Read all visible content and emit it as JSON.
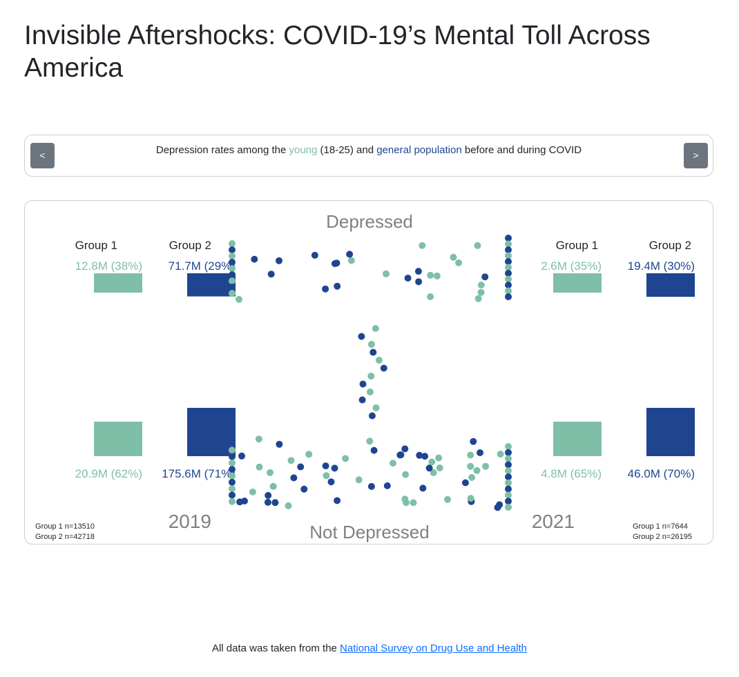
{
  "page": {
    "title": "Invisible Aftershocks: COVID-19’s Mental Toll Across America"
  },
  "nav": {
    "prev_label": "<",
    "next_label": ">",
    "caption_pre": "Depression rates among the ",
    "caption_young": "young",
    "caption_mid1": " (18-25) and ",
    "caption_general": "general population",
    "caption_post": " before and during COVID"
  },
  "colors": {
    "young": "#7fbfa7",
    "general": "#1f4591",
    "label_gray": "#808080",
    "box_border": "#cfcfcf"
  },
  "chart_data": {
    "type": "scatter",
    "top_label": "Depressed",
    "bottom_label": "Not Depressed",
    "panels": [
      {
        "year": "2019",
        "groups": [
          {
            "name": "Group 1",
            "color_key": "young",
            "depressed_label": "12.8M (38%)",
            "depressed_value": 12.8,
            "not_depressed_label": "20.9M (62%)",
            "not_depressed_value": 20.9
          },
          {
            "name": "Group 2",
            "color_key": "general",
            "depressed_label": "71.7M (29%)",
            "depressed_value": 71.7,
            "not_depressed_label": "175.6M (71%)",
            "not_depressed_value": 175.6
          }
        ],
        "sample_sizes": [
          "Group 1 n=13510",
          "Group 2 n=42718"
        ]
      },
      {
        "year": "2021",
        "groups": [
          {
            "name": "Group 1",
            "color_key": "young",
            "depressed_label": "2.6M (35%)",
            "depressed_value": 2.6,
            "not_depressed_label": "4.8M (65%)",
            "not_depressed_value": 4.8
          },
          {
            "name": "Group 2",
            "color_key": "general",
            "depressed_label": "19.4M (30%)",
            "depressed_value": 19.4,
            "not_depressed_label": "46.0M (70%)",
            "not_depressed_value": 46.0
          }
        ],
        "sample_sizes": [
          "Group 1 n=7644",
          "Group 2 n=26195"
        ]
      }
    ]
  },
  "footer": {
    "text": "All data was taken from the ",
    "link_text": "National Survey on Drug Use and Health"
  }
}
